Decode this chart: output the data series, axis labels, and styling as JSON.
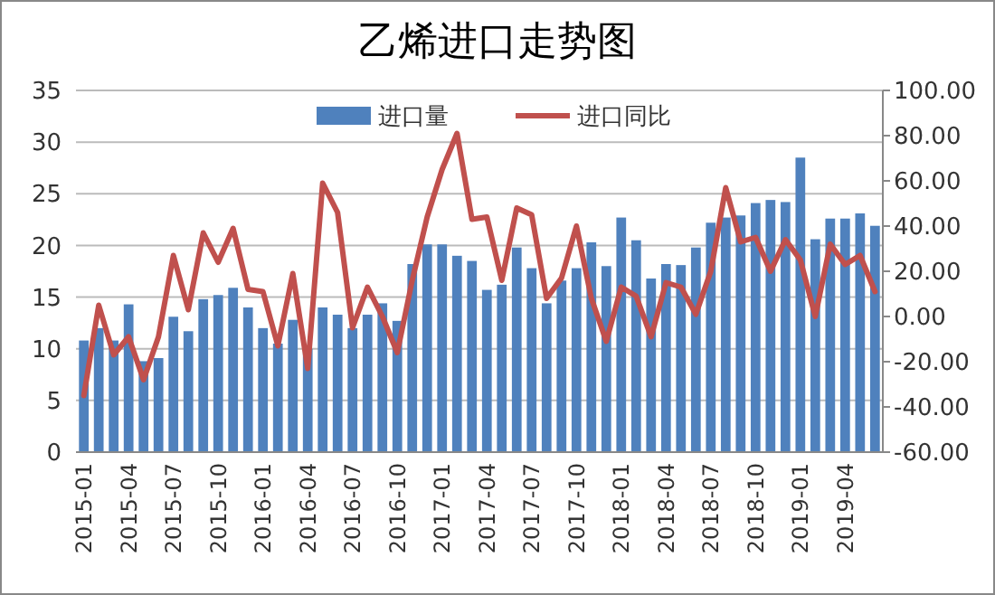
{
  "chart_data": {
    "type": "bar",
    "title": "乙烯进口走势图",
    "categories": [
      "2015-01",
      null,
      null,
      "2015-04",
      null,
      null,
      "2015-07",
      null,
      null,
      "2015-10",
      null,
      null,
      "2016-01",
      null,
      null,
      "2016-04",
      null,
      null,
      "2016-07",
      null,
      null,
      "2016-10",
      null,
      null,
      "2017-01",
      null,
      null,
      "2017-04",
      null,
      null,
      "2017-07",
      null,
      null,
      "2017-10",
      null,
      null,
      "2018-01",
      null,
      null,
      "2018-04",
      null,
      null,
      "2018-07",
      null,
      null,
      "2018-10",
      null,
      null,
      "2019-01",
      null,
      null,
      "2019-04",
      null,
      null
    ],
    "series": [
      {
        "name": "进口量",
        "color": "#4f81bd",
        "values": [
          10.8,
          12.0,
          10.8,
          14.3,
          8.8,
          9.1,
          13.1,
          11.7,
          14.8,
          15.2,
          15.9,
          14.0,
          12.0,
          10.5,
          12.8,
          10.0,
          14.0,
          13.3,
          12.0,
          13.3,
          14.4,
          12.7,
          18.2,
          20.1,
          20.1,
          19.0,
          18.5,
          15.7,
          16.2,
          19.8,
          17.8,
          14.4,
          16.6,
          17.8,
          20.3,
          18.0,
          22.7,
          20.5,
          16.8,
          18.2,
          18.1,
          19.8,
          22.2,
          22.7,
          22.9,
          24.1,
          24.4,
          24.2,
          28.5,
          20.6,
          22.6,
          22.6,
          23.1,
          21.9
        ]
      },
      {
        "name": "进口同比",
        "type": "line",
        "axis": "y2",
        "color": "#c0504d",
        "values": [
          -35,
          5,
          -17,
          -9,
          -28,
          -9,
          27,
          3,
          37,
          24,
          39,
          12,
          11,
          -13,
          19,
          -23,
          59,
          46,
          -5,
          13,
          0,
          -16,
          16,
          44,
          65,
          81,
          43,
          44,
          16,
          48,
          45,
          8,
          17,
          40,
          8,
          -11,
          13,
          9,
          -9,
          15,
          13,
          1,
          20,
          57,
          33,
          35,
          20,
          34,
          25,
          0,
          32,
          23,
          27,
          11
        ]
      }
    ],
    "ylim": [
      0,
      35
    ],
    "yticks": [
      0,
      5,
      10,
      15,
      20,
      25,
      30,
      35
    ],
    "y2lim": [
      -60,
      100
    ],
    "y2ticks": [
      {
        "value": -60,
        "label": "-60.00"
      },
      {
        "value": -40,
        "label": "-40.00"
      },
      {
        "value": -20,
        "label": "-20.00"
      },
      {
        "value": 0,
        "label": "0.00"
      },
      {
        "value": 20,
        "label": "20.00"
      },
      {
        "value": 40,
        "label": "40.00"
      },
      {
        "value": 60,
        "label": "60.00"
      },
      {
        "value": 80,
        "label": "80.00"
      },
      {
        "value": 100,
        "label": "100.00"
      }
    ],
    "grid": "y",
    "legend": "top",
    "line_style": "solid",
    "marker": "none"
  }
}
